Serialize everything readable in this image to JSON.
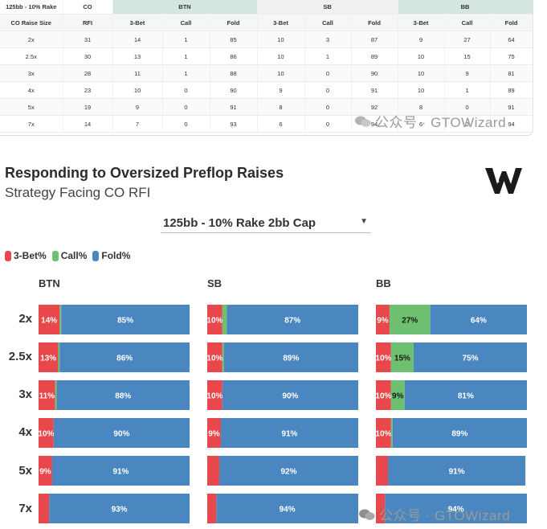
{
  "table": {
    "corner_label": "125bb - 10% Rake",
    "co_label": "CO",
    "groups": [
      "BTN",
      "SB",
      "BB"
    ],
    "col_labels": [
      "CO Raise Size",
      "RFI",
      "3-Bet",
      "Call",
      "Fold",
      "3-Bet",
      "Call",
      "Fold",
      "3-Bet",
      "Call",
      "Fold"
    ],
    "rows": [
      [
        "2x",
        "31",
        "14",
        "1",
        "85",
        "10",
        "3",
        "87",
        "9",
        "27",
        "64"
      ],
      [
        "2.5x",
        "30",
        "13",
        "1",
        "86",
        "10",
        "1",
        "89",
        "10",
        "15",
        "75"
      ],
      [
        "3x",
        "28",
        "11",
        "1",
        "88",
        "10",
        "0",
        "90",
        "10",
        "9",
        "81"
      ],
      [
        "4x",
        "23",
        "10",
        "0",
        "90",
        "9",
        "0",
        "91",
        "10",
        "1",
        "89"
      ],
      [
        "5x",
        "19",
        "9",
        "0",
        "91",
        "8",
        "0",
        "92",
        "8",
        "0",
        "91"
      ],
      [
        "7x",
        "14",
        "7",
        "0",
        "93",
        "6",
        "0",
        "94",
        "6",
        "0",
        "94"
      ]
    ]
  },
  "title": "Responding to Oversized Preflop Raises",
  "subtitle": "Strategy Facing CO RFI",
  "dropdown": {
    "selected": "125bb - 10% Rake 2bb Cap"
  },
  "watermark": "公众号 · GTOWizard",
  "colors": {
    "threebet": "#e8474b",
    "call": "#6cc070",
    "fold": "#4a87c0",
    "header_green": "#d5e6df"
  },
  "chart_data": {
    "type": "bar",
    "stacked": true,
    "orientation": "horizontal",
    "legend": [
      "3-Bet%",
      "Call%",
      "Fold%"
    ],
    "legend_position": "top-left",
    "categories": [
      "2x",
      "2.5x",
      "3x",
      "4x",
      "5x",
      "7x"
    ],
    "xlim": [
      0,
      100
    ],
    "panels": [
      {
        "name": "BTN",
        "series": [
          {
            "name": "3-Bet%",
            "values": [
              14,
              13,
              11,
              10,
              9,
              7
            ]
          },
          {
            "name": "Call%",
            "values": [
              1,
              1,
              1,
              0,
              0,
              0
            ]
          },
          {
            "name": "Fold%",
            "values": [
              85,
              86,
              88,
              90,
              91,
              93
            ]
          }
        ]
      },
      {
        "name": "SB",
        "series": [
          {
            "name": "3-Bet%",
            "values": [
              10,
              10,
              10,
              9,
              8,
              6
            ]
          },
          {
            "name": "Call%",
            "values": [
              3,
              1,
              0,
              0,
              0,
              0
            ]
          },
          {
            "name": "Fold%",
            "values": [
              87,
              89,
              90,
              91,
              92,
              94
            ]
          }
        ]
      },
      {
        "name": "BB",
        "series": [
          {
            "name": "3-Bet%",
            "values": [
              9,
              10,
              10,
              10,
              8,
              6
            ]
          },
          {
            "name": "Call%",
            "values": [
              27,
              15,
              9,
              1,
              0,
              0
            ]
          },
          {
            "name": "Fold%",
            "values": [
              64,
              75,
              81,
              89,
              91,
              94
            ]
          }
        ]
      }
    ]
  }
}
